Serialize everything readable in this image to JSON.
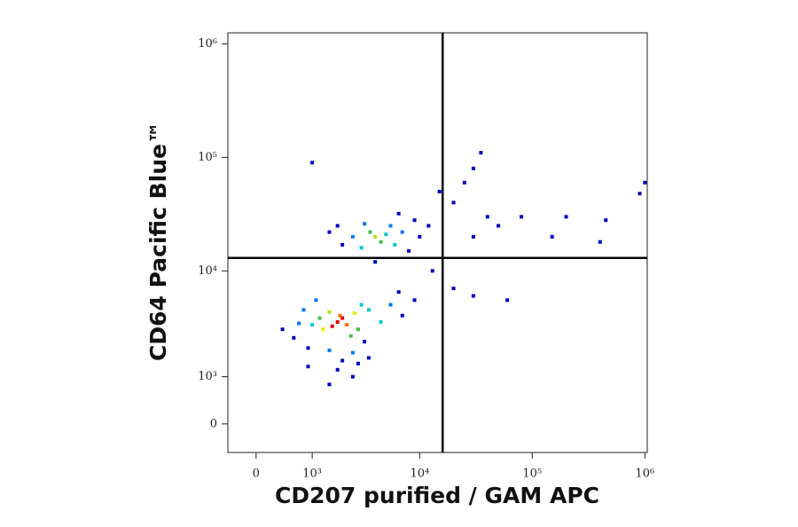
{
  "chart_data": {
    "type": "scatter",
    "xlabel": "CD207 purified / GAM APC",
    "ylabel": "CD64 Pacific Blue™",
    "xscale": "biexponential",
    "yscale": "biexponential",
    "xlim": [
      -430,
      1050000
    ],
    "ylim": [
      -550,
      1250000
    ],
    "xticks": [
      0,
      {
        "value": 1000,
        "label": "10³"
      },
      {
        "value": 10000,
        "label": "10⁴"
      },
      {
        "value": 100000,
        "label": "10⁵"
      },
      {
        "value": 1000000,
        "label": "10⁶"
      }
    ],
    "yticks": [
      0,
      {
        "value": 1000,
        "label": "10³"
      },
      {
        "value": 10000,
        "label": "10⁴"
      },
      {
        "value": 100000,
        "label": "10⁵"
      },
      {
        "value": 1000000,
        "label": "10⁶"
      }
    ],
    "quadrant_x": 16000,
    "quadrant_y": 13000,
    "x": [
      1800,
      2000,
      1600,
      2200,
      1900,
      1300,
      2600,
      1500,
      2800,
      1200,
      2400,
      3000,
      1000,
      3500,
      700,
      600,
      900,
      1500,
      2500,
      3200,
      4500,
      5500,
      6500,
      800,
      1100,
      400,
      2000,
      2800,
      1800,
      900,
      3500,
      7000,
      9000,
      4000,
      4500,
      3600,
      5000,
      3000,
      6000,
      2500,
      5500,
      3200,
      7000,
      2000,
      1800,
      8000,
      9000,
      6500,
      4000,
      1500,
      10000,
      12000,
      13000,
      20000,
      25000,
      30000,
      35000,
      40000,
      30000,
      50000,
      80000,
      150000,
      200000,
      400000,
      450000,
      900000,
      1000000,
      60000,
      20000,
      30000,
      1000,
      15000,
      2500,
      1500
    ],
    "y": [
      3500,
      3800,
      3200,
      3300,
      4000,
      3000,
      4200,
      4300,
      3000,
      3800,
      2600,
      5000,
      3300,
      4500,
      3400,
      2500,
      2000,
      1900,
      1800,
      2300,
      3500,
      5000,
      6500,
      4500,
      5500,
      3000,
      1500,
      1400,
      1200,
      1300,
      1600,
      4000,
      5500,
      20000,
      18000,
      22000,
      21000,
      16000,
      17000,
      20000,
      25000,
      26000,
      22000,
      17000,
      25000,
      15000,
      28000,
      32000,
      12000,
      22000,
      20000,
      25000,
      10000,
      40000,
      60000,
      80000,
      110000,
      30000,
      20000,
      25000,
      30000,
      20000,
      30000,
      18000,
      28000,
      48000,
      60000,
      5500,
      7000,
      6000,
      90000,
      50000,
      1000,
      800
    ],
    "colors": [
      "#e00000",
      "#e00000",
      "#e00000",
      "#ff6a00",
      "#ff6a00",
      "#e8e800",
      "#e8e800",
      "#b8e020",
      "#40c040",
      "#40c040",
      "#40c040",
      "#00c8d0",
      "#00c8d0",
      "#00c8d0",
      "#0078ff",
      "#0000c0",
      "#0000c0",
      "#0078ff",
      "#0078ff",
      "#0000c0",
      "#00c8d0",
      "#0078ff",
      "#0000c0",
      "#0078ff",
      "#0078ff",
      "#0000c0",
      "#0000c0",
      "#0000c0",
      "#0000c0",
      "#0000c0",
      "#0000c0",
      "#0000c0",
      "#0000c0",
      "#b8e020",
      "#40c040",
      "#40c040",
      "#00c8d0",
      "#00c8d0",
      "#00c8d0",
      "#0078ff",
      "#0078ff",
      "#0078ff",
      "#0078ff",
      "#0000c0",
      "#0000c0",
      "#0000c0",
      "#0000c0",
      "#0000c0",
      "#0000c0",
      "#0000c0",
      "#0000c0",
      "#0000c0",
      "#0000c0",
      "#0000c0",
      "#0000c0",
      "#0000c0",
      "#0000c0",
      "#0000c0",
      "#0000c0",
      "#0000c0",
      "#0000c0",
      "#0000c0",
      "#0000c0",
      "#0000c0",
      "#0000c0",
      "#0000c0",
      "#0000c0",
      "#0000c0",
      "#0000c0",
      "#0000c0",
      "#0000c0",
      "#0000c0",
      "#0000c0",
      "#0000c0"
    ]
  }
}
